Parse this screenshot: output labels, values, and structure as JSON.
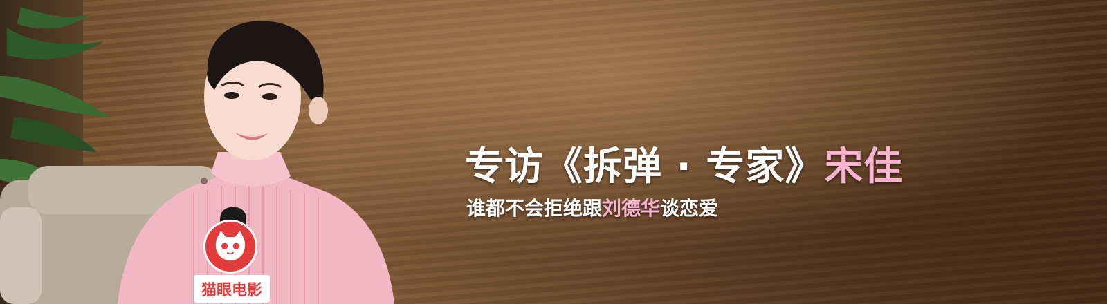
{
  "headline": {
    "prefix": "专访《拆弹 · 专家》",
    "name": "宋佳"
  },
  "subline": {
    "part1": "谁都不会拒绝跟",
    "highlight": "刘德华",
    "part2": "谈恋爱"
  },
  "mic_logo": {
    "brand_text": "猫眼电影",
    "icon": "cat-face-icon",
    "color": "#e23b3b"
  },
  "colors": {
    "accent_pink": "#f7b3cf",
    "text_white": "#ffffff"
  }
}
